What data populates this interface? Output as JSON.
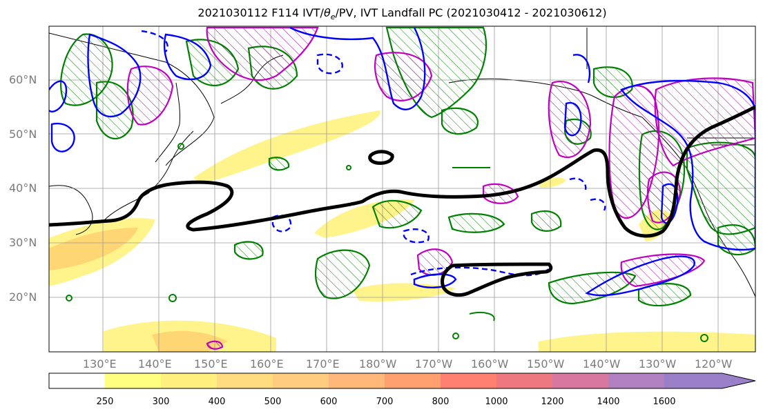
{
  "title": {
    "prefix": "2021030112 F114 IVT/",
    "theta": "θ",
    "theta_sub": "e",
    "suffix": "/PV, IVT Landfall PC (2021030412 - 2021030612)"
  },
  "map": {
    "lat_labels": [
      "60°N",
      "50°N",
      "40°N",
      "30°N",
      "20°N"
    ],
    "lon_labels": [
      "130°E",
      "140°E",
      "150°E",
      "160°E",
      "170°E",
      "180°W",
      "170°W",
      "160°W",
      "150°W",
      "140°W",
      "130°W",
      "120°W"
    ],
    "colors": {
      "theta_e_contour": "#000000",
      "pv_contour_solid": "#0000ff",
      "pv_contour_dashed": "#0000ff",
      "ivt_pc_contour": "#008000",
      "ivt_pc_hatch": "#008000",
      "landfall_contour": "#c000c0",
      "coastline": "#000000",
      "gridline": "#9a9a9a"
    }
  },
  "colorbar": {
    "tick_labels": [
      "250",
      "300",
      "400",
      "500",
      "600",
      "700",
      "800",
      "1000",
      "1200",
      "1400",
      "1600"
    ],
    "colors": [
      "#ffffff",
      "#ffff80",
      "#fff080",
      "#ffdc80",
      "#ffcc80",
      "#ffb87a",
      "#ffa070",
      "#ff8070",
      "#ee7880",
      "#d878a0",
      "#b080c0",
      "#9a80c8"
    ]
  }
}
